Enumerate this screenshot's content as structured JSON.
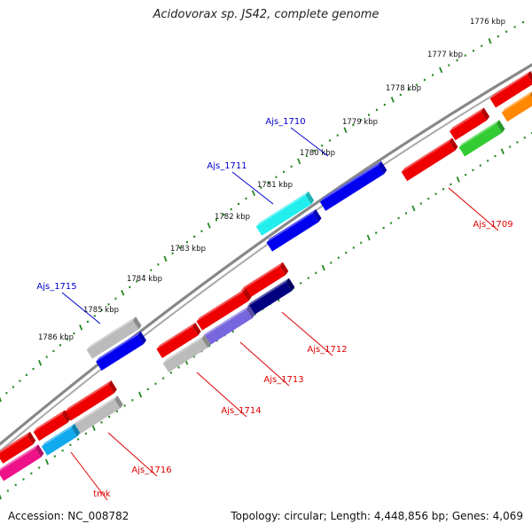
{
  "title": "Acidovorax sp. JS42, complete genome",
  "footer": {
    "accession": "Accession: NC_008782",
    "summary": "Topology: circular; Length: 4,448,856 bp; Genes: 4,069"
  },
  "ticks": [
    "1776 kbp",
    "1777 kbp",
    "1778 kbp",
    "1779 kbp",
    "1780 kbp",
    "1781 kbp",
    "1782 kbp",
    "1783 kbp",
    "1784 kbp",
    "1785 kbp",
    "1786 kbp"
  ],
  "gene_labels": [
    {
      "text": "Ajs_1710",
      "color": "#0000cc"
    },
    {
      "text": "Ajs_1711",
      "color": "#0000cc"
    },
    {
      "text": "Ajs_1715",
      "color": "#0000cc"
    },
    {
      "text": "Ajs_1709",
      "color": "#dd0000"
    },
    {
      "text": "Ajs_1712",
      "color": "#dd0000"
    },
    {
      "text": "Ajs_1713",
      "color": "#dd0000"
    },
    {
      "text": "Ajs_1714",
      "color": "#dd0000"
    },
    {
      "text": "Ajs_1716",
      "color": "#dd0000"
    },
    {
      "text": "tmk",
      "color": "#dd0000"
    }
  ],
  "colors": {
    "backbone": "#888888",
    "tick_mark": "#228822",
    "red": "#ee0000",
    "blue": "#0000ee",
    "cyan": "#22eeee",
    "gray": "#bbbbbb",
    "navy": "#000080",
    "slate": "#7766dd",
    "green": "#33cc33",
    "orange": "#ff8800",
    "magenta": "#ee1188",
    "sky": "#11aaee"
  }
}
